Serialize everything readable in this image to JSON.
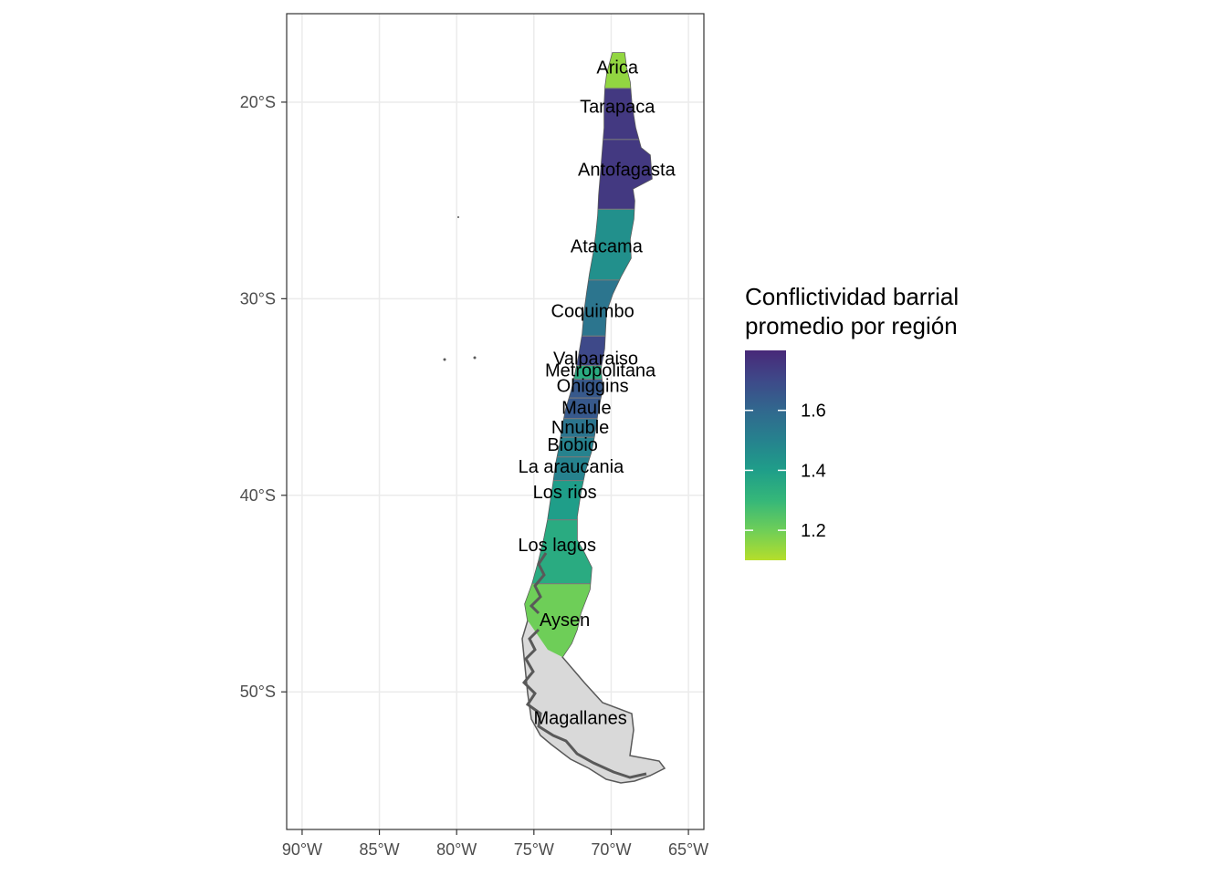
{
  "chart_data": {
    "type": "choropleth-map",
    "title": "",
    "xlabel": "",
    "ylabel": "",
    "xlim": [
      -91,
      -64
    ],
    "ylim": [
      -57,
      -15.5
    ],
    "x_ticks": [
      {
        "value": -90,
        "label": "90°W"
      },
      {
        "value": -85,
        "label": "85°W"
      },
      {
        "value": -80,
        "label": "80°W"
      },
      {
        "value": -75,
        "label": "75°W"
      },
      {
        "value": -70,
        "label": "70°W"
      },
      {
        "value": -65,
        "label": "65°W"
      }
    ],
    "y_ticks": [
      {
        "value": -20,
        "label": "20°S"
      },
      {
        "value": -30,
        "label": "30°S"
      },
      {
        "value": -40,
        "label": "40°S"
      },
      {
        "value": -50,
        "label": "50°S"
      }
    ],
    "grid": true,
    "legend": {
      "title_lines": [
        "Conflictividad barrial",
        "promedio por región"
      ],
      "placement": "right",
      "min": 1.1,
      "max": 1.8,
      "ticks": [
        {
          "value": 1.2,
          "label": "1.2"
        },
        {
          "value": 1.4,
          "label": "1.4"
        },
        {
          "value": 1.6,
          "label": "1.6"
        }
      ],
      "colors": [
        "#b5de2b",
        "#6ece58",
        "#35b779",
        "#1f9e89",
        "#26828e",
        "#31688e",
        "#3e4989",
        "#482878"
      ]
    },
    "regions": [
      {
        "name": "Arica",
        "value": 1.15,
        "label_lon": -69.6,
        "label_lat": -18.3
      },
      {
        "name": "Tarapaca",
        "value": 1.75,
        "label_lon": -69.6,
        "label_lat": -20.3
      },
      {
        "name": "Antofagasta",
        "value": 1.75,
        "label_lon": -69.0,
        "label_lat": -23.5
      },
      {
        "name": "Atacama",
        "value": 1.45,
        "label_lon": -70.3,
        "label_lat": -27.4
      },
      {
        "name": "Coquimbo",
        "value": 1.55,
        "label_lon": -71.2,
        "label_lat": -30.7
      },
      {
        "name": "Valparaiso",
        "value": 1.7,
        "label_lon": -71.0,
        "label_lat": -33.1
      },
      {
        "name": "Metropolitana",
        "value": 1.35,
        "label_lon": -70.7,
        "label_lat": -33.7
      },
      {
        "name": "Ohiggins",
        "value": 1.65,
        "label_lon": -71.2,
        "label_lat": -34.5
      },
      {
        "name": "Maule",
        "value": 1.65,
        "label_lon": -71.6,
        "label_lat": -35.6
      },
      {
        "name": "Nnuble",
        "value": 1.55,
        "label_lon": -72.0,
        "label_lat": -36.6
      },
      {
        "name": "Biobio",
        "value": 1.5,
        "label_lon": -72.5,
        "label_lat": -37.5
      },
      {
        "name": "La araucania",
        "value": 1.5,
        "label_lon": -72.6,
        "label_lat": -38.6
      },
      {
        "name": "Los rios",
        "value": 1.4,
        "label_lon": -73.0,
        "label_lat": -39.9
      },
      {
        "name": "Los lagos",
        "value": 1.35,
        "label_lon": -73.5,
        "label_lat": -42.6
      },
      {
        "name": "Aysen",
        "value": 1.2,
        "label_lon": -73.0,
        "label_lat": -46.4
      },
      {
        "name": "Magallanes",
        "value": null,
        "label_lon": -72.0,
        "label_lat": -51.4
      }
    ]
  }
}
